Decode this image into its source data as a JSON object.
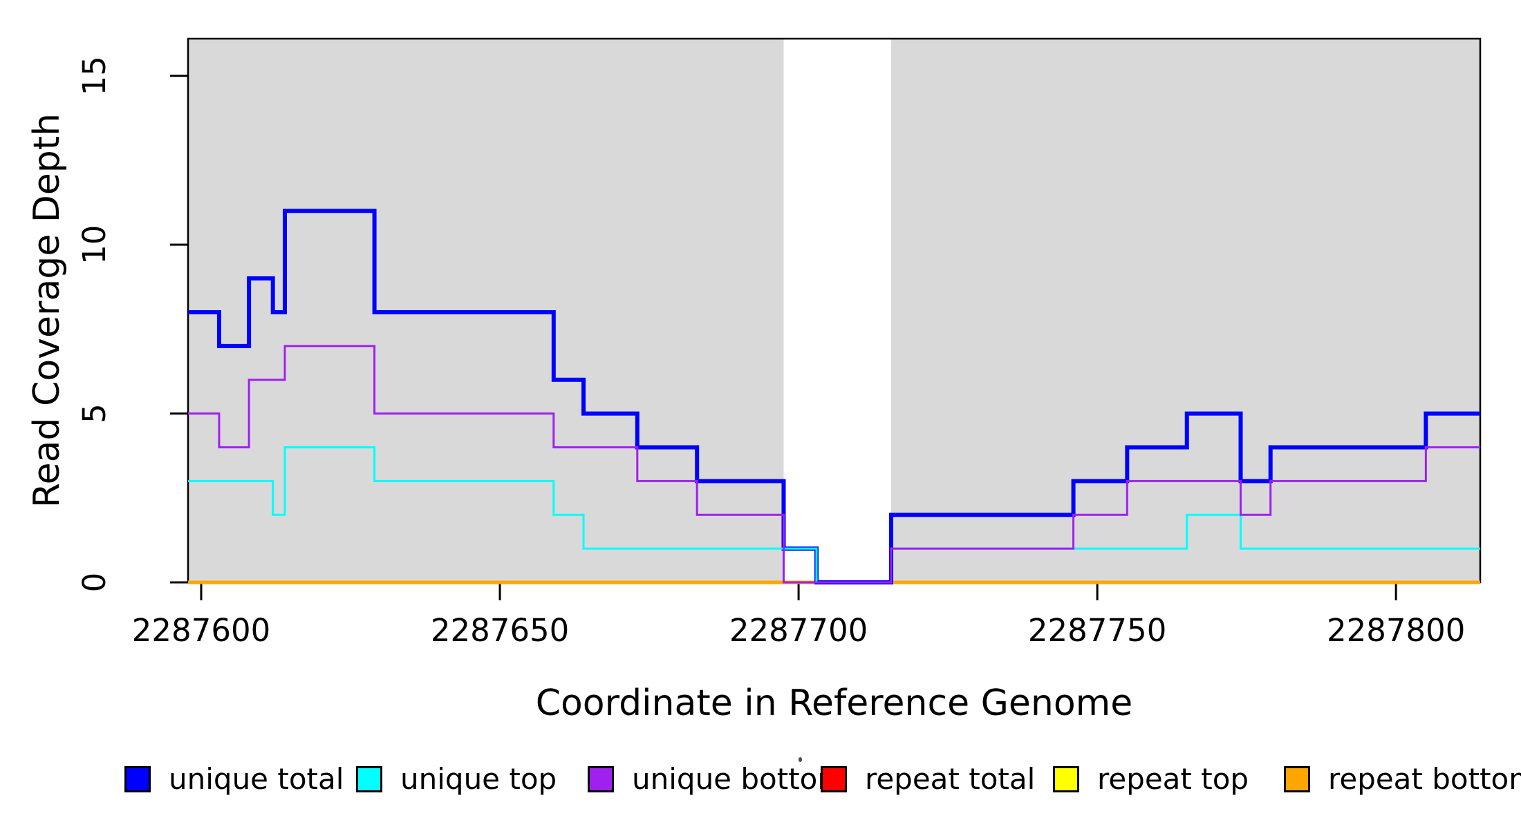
{
  "chart_data": {
    "type": "line",
    "step": true,
    "title": "",
    "xlabel": "Coordinate in Reference Genome",
    "ylabel": "Read Coverage Depth",
    "xlim": [
      2287597.8,
      2287814.1
    ],
    "ylim": [
      0,
      16.1
    ],
    "xticks": [
      2287600,
      2287650,
      2287700,
      2287750,
      2287800
    ],
    "yticks": [
      0,
      5,
      10,
      15
    ],
    "grid": false,
    "background_shading": {
      "color": "#D9D9D9",
      "regions": [
        [
          2287597.8,
          2287697.5
        ],
        [
          2287715.5,
          2287814.1
        ]
      ]
    },
    "series": [
      {
        "name": "repeat total",
        "color": "#FF0000",
        "width": 5,
        "points": [
          [
            2287597.8,
            0
          ],
          [
            2287814.1,
            0
          ]
        ]
      },
      {
        "name": "repeat top",
        "color": "#FFFF00",
        "width": 5,
        "points": [
          [
            2287597.8,
            0
          ],
          [
            2287814.1,
            0
          ]
        ]
      },
      {
        "name": "repeat bottom",
        "color": "#FFA500",
        "width": 5,
        "points": [
          [
            2287597.8,
            0
          ],
          [
            2287814.1,
            0
          ]
        ]
      },
      {
        "name": "unique total",
        "color": "#0000FF",
        "width": 6,
        "points": [
          [
            2287597.8,
            8
          ],
          [
            2287603,
            7
          ],
          [
            2287608,
            9
          ],
          [
            2287612,
            8
          ],
          [
            2287614,
            11
          ],
          [
            2287629,
            8
          ],
          [
            2287659,
            6
          ],
          [
            2287664,
            5
          ],
          [
            2287673,
            4
          ],
          [
            2287683,
            3
          ],
          [
            2287697.5,
            1
          ],
          [
            2287703,
            0
          ],
          [
            2287715.5,
            2
          ],
          [
            2287746,
            3
          ],
          [
            2287755,
            4
          ],
          [
            2287765,
            5
          ],
          [
            2287774,
            3
          ],
          [
            2287779,
            4
          ],
          [
            2287805,
            5
          ],
          [
            2287814.1,
            5
          ]
        ]
      },
      {
        "name": "unique top",
        "color": "#00FFFF",
        "width": 3,
        "points": [
          [
            2287597.8,
            3
          ],
          [
            2287612,
            2
          ],
          [
            2287614,
            4
          ],
          [
            2287629,
            3
          ],
          [
            2287659,
            2
          ],
          [
            2287664,
            1
          ],
          [
            2287703,
            0
          ],
          [
            2287715.5,
            1
          ],
          [
            2287765,
            2
          ],
          [
            2287774,
            1
          ],
          [
            2287814.1,
            1
          ]
        ]
      },
      {
        "name": "unique bottom",
        "color": "#A020F0",
        "width": 3,
        "points": [
          [
            2287597.8,
            5
          ],
          [
            2287603,
            4
          ],
          [
            2287608,
            6
          ],
          [
            2287614,
            7
          ],
          [
            2287629,
            5
          ],
          [
            2287659,
            4
          ],
          [
            2287673,
            3
          ],
          [
            2287683,
            2
          ],
          [
            2287697.5,
            0
          ],
          [
            2287715.5,
            1
          ],
          [
            2287746,
            2
          ],
          [
            2287755,
            3
          ],
          [
            2287774,
            2
          ],
          [
            2287779,
            3
          ],
          [
            2287805,
            4
          ],
          [
            2287814.1,
            4
          ]
        ]
      }
    ],
    "legend": {
      "position": "bottom",
      "items": [
        {
          "label": "unique total",
          "color": "#0000FF"
        },
        {
          "label": "unique top",
          "color": "#00FFFF"
        },
        {
          "label": "unique bottom",
          "color": "#A020F0"
        },
        {
          "label": "repeat total",
          "color": "#FF0000"
        },
        {
          "label": "repeat top",
          "color": "#FFFF00"
        },
        {
          "label": "repeat bottom",
          "color": "#FFA500"
        }
      ]
    },
    "axis_color": "#000000"
  }
}
